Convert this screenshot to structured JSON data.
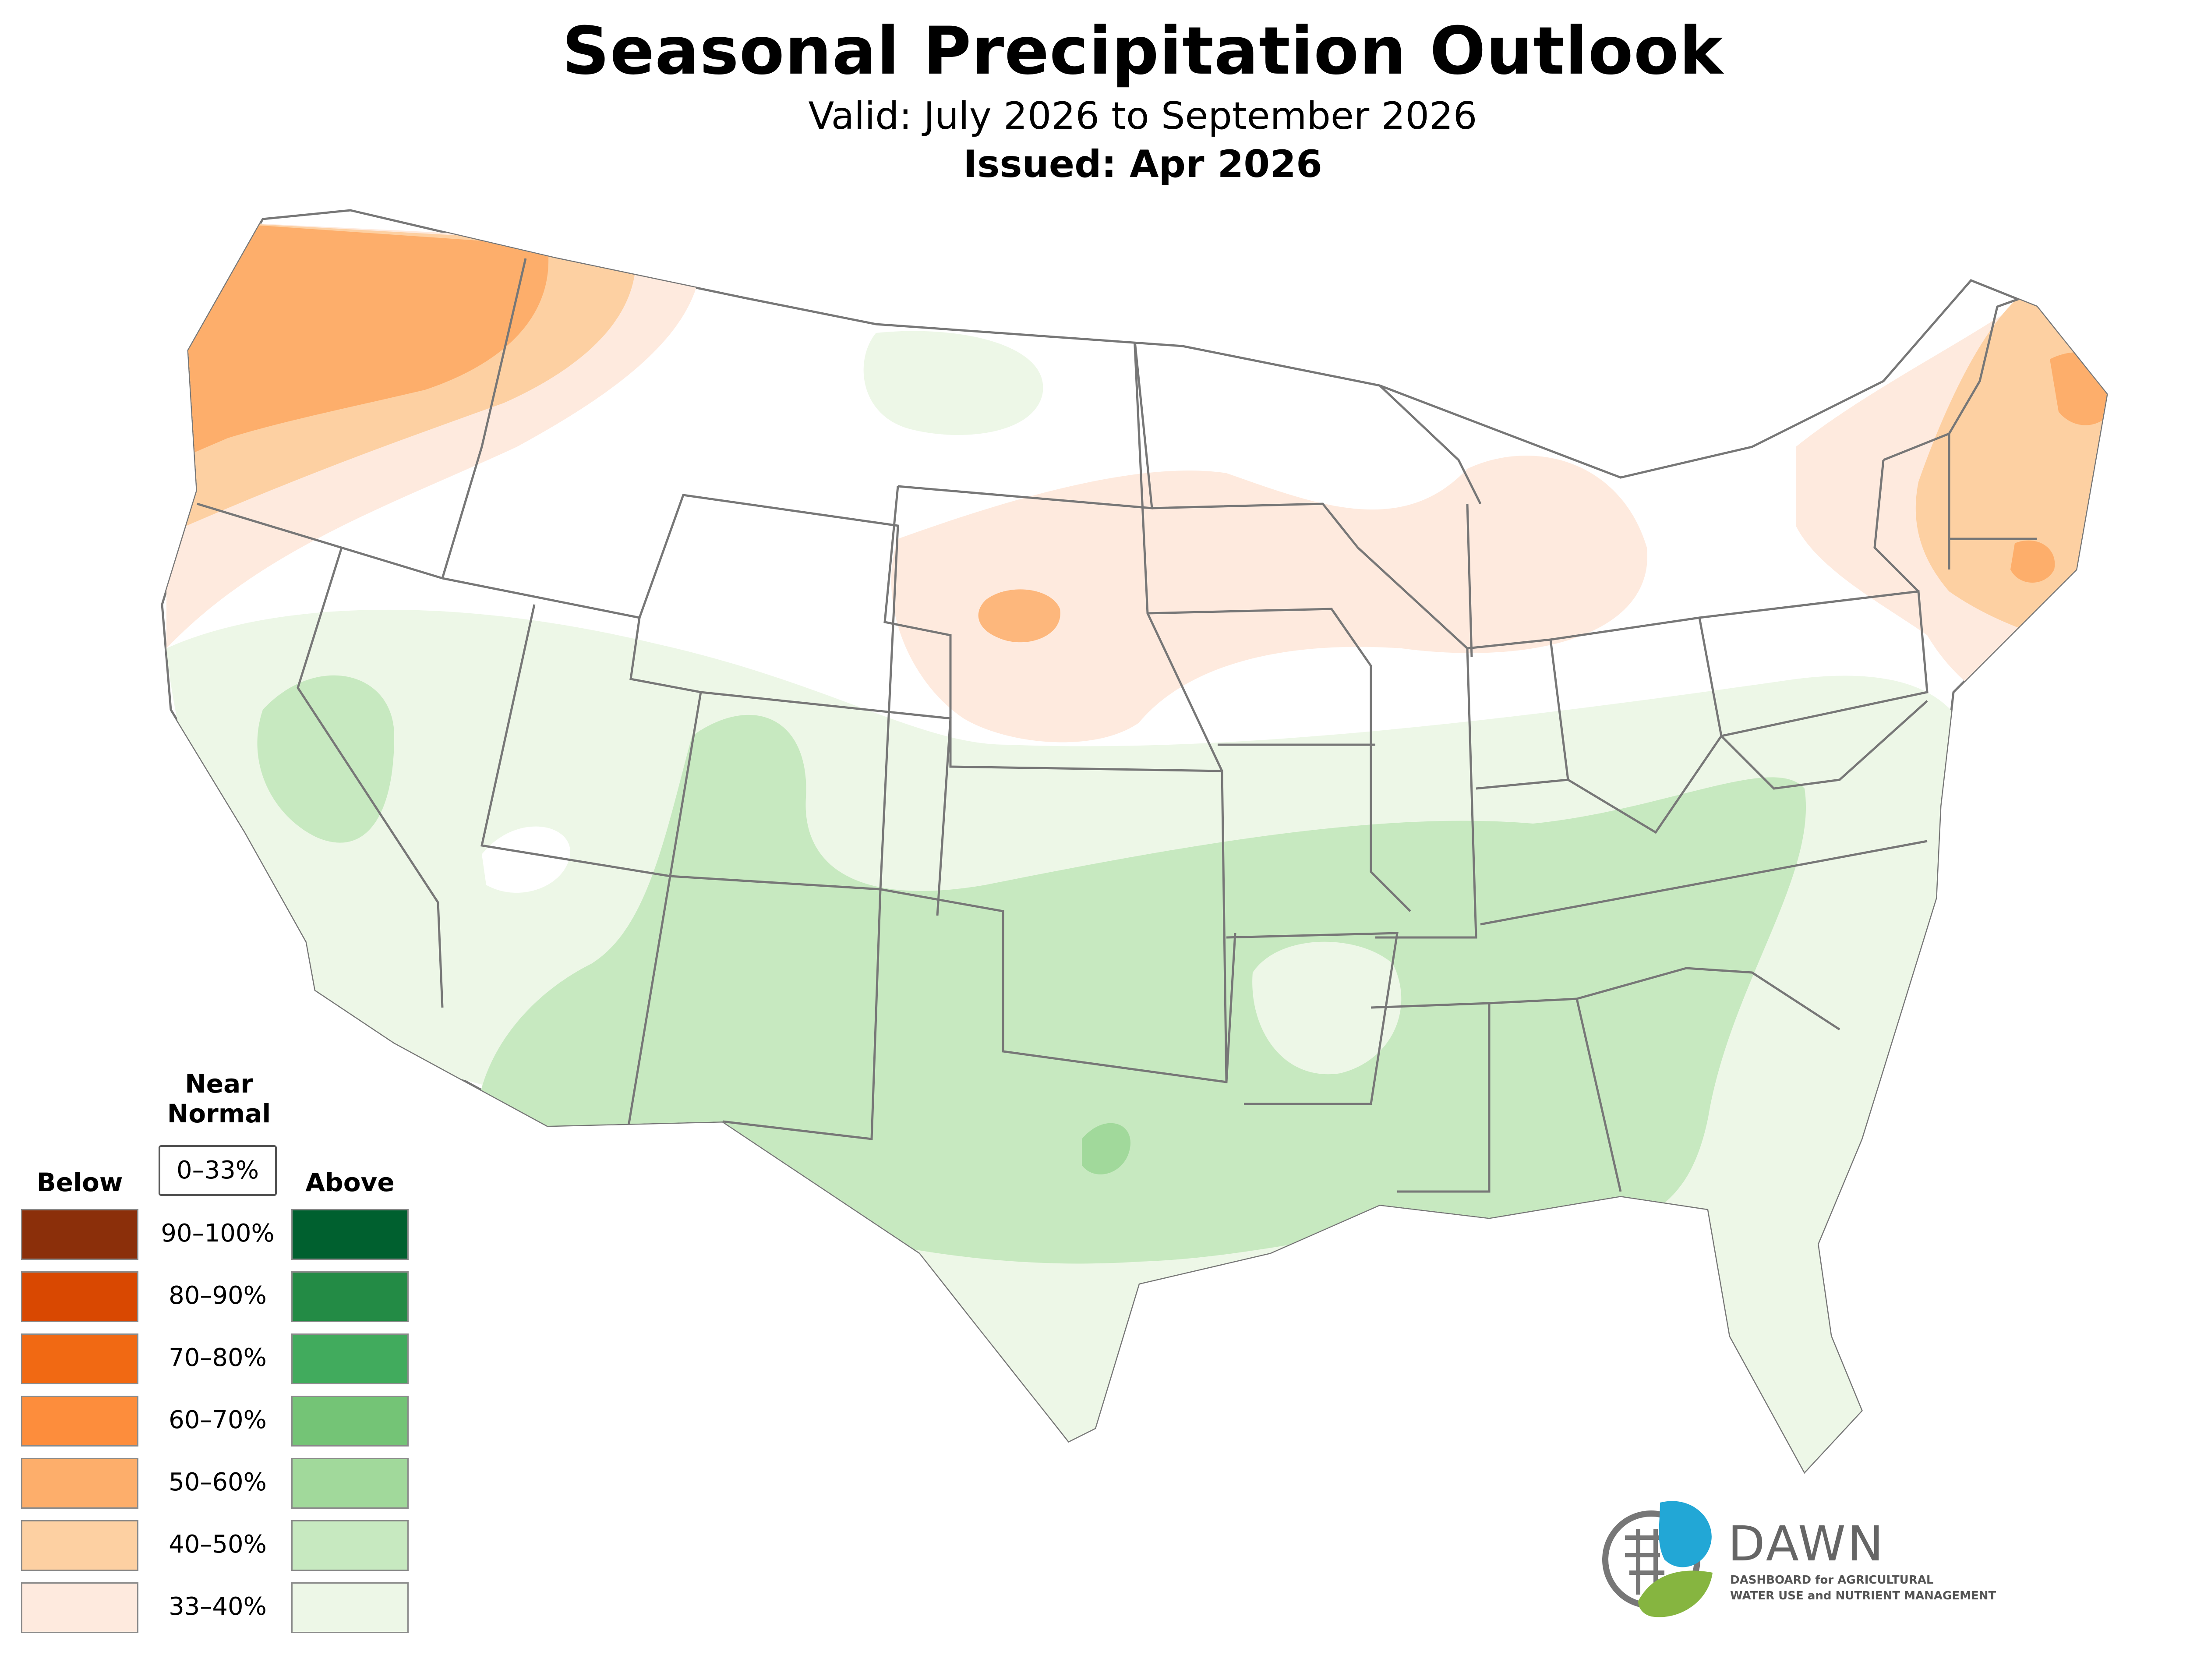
{
  "header": {
    "title": "Seasonal Precipitation Outlook",
    "valid": "Valid: July 2026 to September 2026",
    "issued": "Issued: Apr 2026"
  },
  "legend": {
    "near_normal_heading": "Near Normal",
    "near_normal_range": "0–33%",
    "below_heading": "Below",
    "above_heading": "Above",
    "ranges": [
      "90–100%",
      "80–90%",
      "70–80%",
      "60–70%",
      "50–60%",
      "40–50%",
      "33–40%"
    ],
    "below_colors": [
      "#8b2f0a",
      "#d94801",
      "#f16913",
      "#fd8d3c",
      "#fdae6b",
      "#fdd0a2",
      "#feeade"
    ],
    "above_colors": [
      "#00602f",
      "#238b45",
      "#41ab5d",
      "#74c476",
      "#a1d99b",
      "#c7e9c0",
      "#edf7e7"
    ]
  },
  "logo": {
    "name": "DAWN",
    "line1": "DASHBOARD for AGRICULTURAL",
    "line2": "WATER USE and NUTRIENT MANAGEMENT"
  }
}
